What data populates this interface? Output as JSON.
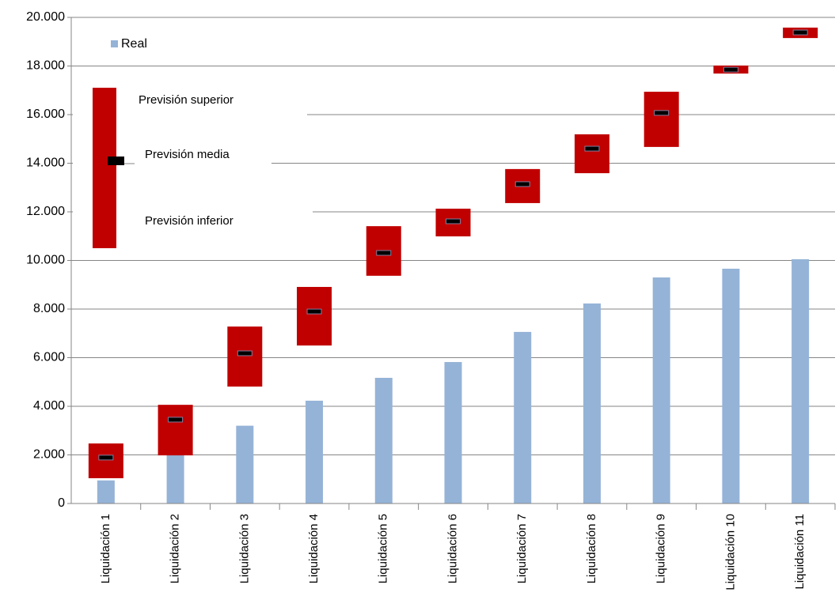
{
  "chart_data": {
    "type": "bar",
    "categories": [
      "Liquidación 1",
      "Liquidación 2",
      "Liquidación 3",
      "Liquidación 4",
      "Liquidación 5",
      "Liquidación 6",
      "Liquidación 7",
      "Liquidación 8",
      "Liquidación 9",
      "Liquidación 10",
      "Liquidación 11"
    ],
    "series": [
      {
        "name": "Real",
        "color": "#95b3d7",
        "values": [
          950,
          2000,
          3200,
          4230,
          5170,
          5820,
          7060,
          8230,
          9300,
          9660,
          10050
        ]
      },
      {
        "name": "Previsión superior",
        "color": "#c00000",
        "values": [
          2470,
          4060,
          7280,
          8910,
          11410,
          12130,
          13760,
          15190,
          16940,
          18020,
          19580
        ]
      },
      {
        "name": "Previsión media",
        "color": "#000000",
        "values": [
          1890,
          3450,
          6180,
          7900,
          10310,
          11610,
          13140,
          14600,
          16070,
          17850,
          19380
        ]
      },
      {
        "name": "Previsión inferior",
        "color": "#c00000",
        "values": [
          1040,
          1980,
          4810,
          6500,
          9370,
          10990,
          12360,
          13590,
          14670,
          17690,
          19150
        ]
      }
    ],
    "ylim": [
      0,
      20000
    ],
    "yticks": [
      0,
      {
        "value": 2000,
        "label": "2.000"
      },
      {
        "value": 4000,
        "label": "4.000"
      },
      {
        "value": 6000,
        "label": "6.000"
      },
      {
        "value": 8000,
        "label": "8.000"
      },
      {
        "value": 10000,
        "label": "10.000"
      },
      {
        "value": 12000,
        "label": "12.000"
      },
      {
        "value": 14000,
        "label": "14.000"
      },
      {
        "value": 16000,
        "label": "16.000"
      },
      {
        "value": 18000,
        "label": "18.000"
      },
      {
        "value": 20000,
        "label": "20.000"
      }
    ],
    "grid": true
  }
}
